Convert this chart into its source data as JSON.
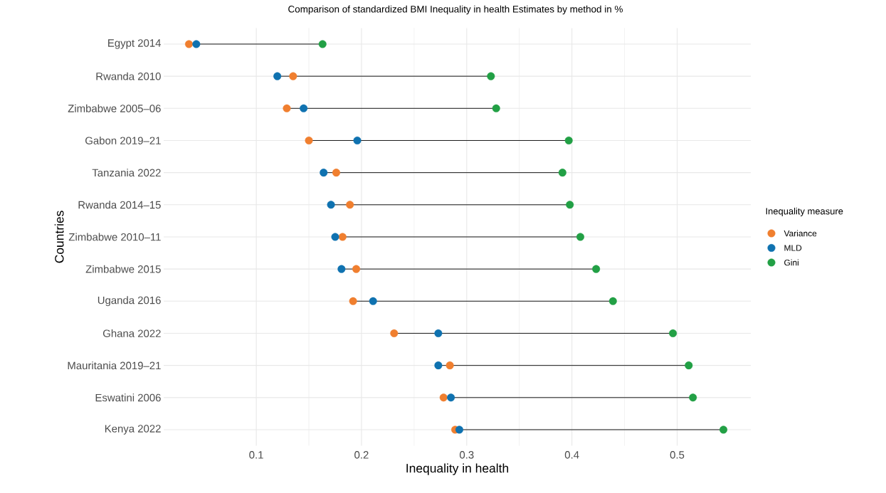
{
  "chart_data": {
    "type": "scatter",
    "orientation": "horizontal",
    "title": "Comparison of standardized BMI Inequality in health Estimates by method in %",
    "xlabel": "Inequality in health",
    "ylabel": "Countries",
    "legend_title": "Inequality measure",
    "categories": [
      "Egypt 2014",
      "Rwanda 2010",
      "Zimbabwe 2005–06",
      "Gabon 2019–21",
      "Tanzania 2022",
      "Rwanda 2014–15",
      "Zimbabwe 2010–11",
      "Zimbabwe 2015",
      "Uganda 2016",
      "Ghana 2022",
      "Mauritania 2019–21",
      "Eswatini 2006",
      "Kenya 2022"
    ],
    "series": [
      {
        "name": "Variance",
        "color": "#f07f2f",
        "values": [
          0.036,
          0.135,
          0.129,
          0.15,
          0.176,
          0.189,
          0.182,
          0.195,
          0.192,
          0.231,
          0.284,
          0.278,
          0.289
        ]
      },
      {
        "name": "MLD",
        "color": "#0f72b0",
        "values": [
          0.043,
          0.12,
          0.145,
          0.196,
          0.164,
          0.171,
          0.175,
          0.181,
          0.211,
          0.273,
          0.273,
          0.285,
          0.293
        ]
      },
      {
        "name": "Gini",
        "color": "#22a045",
        "values": [
          0.163,
          0.323,
          0.328,
          0.397,
          0.391,
          0.398,
          0.408,
          0.423,
          0.439,
          0.496,
          0.511,
          0.515,
          0.544
        ]
      }
    ],
    "xlim": [
      0.012,
      0.57
    ],
    "xticks": [
      0.1,
      0.2,
      0.3,
      0.4,
      0.5
    ],
    "grid": true,
    "legend": "right",
    "marker": "circle"
  }
}
